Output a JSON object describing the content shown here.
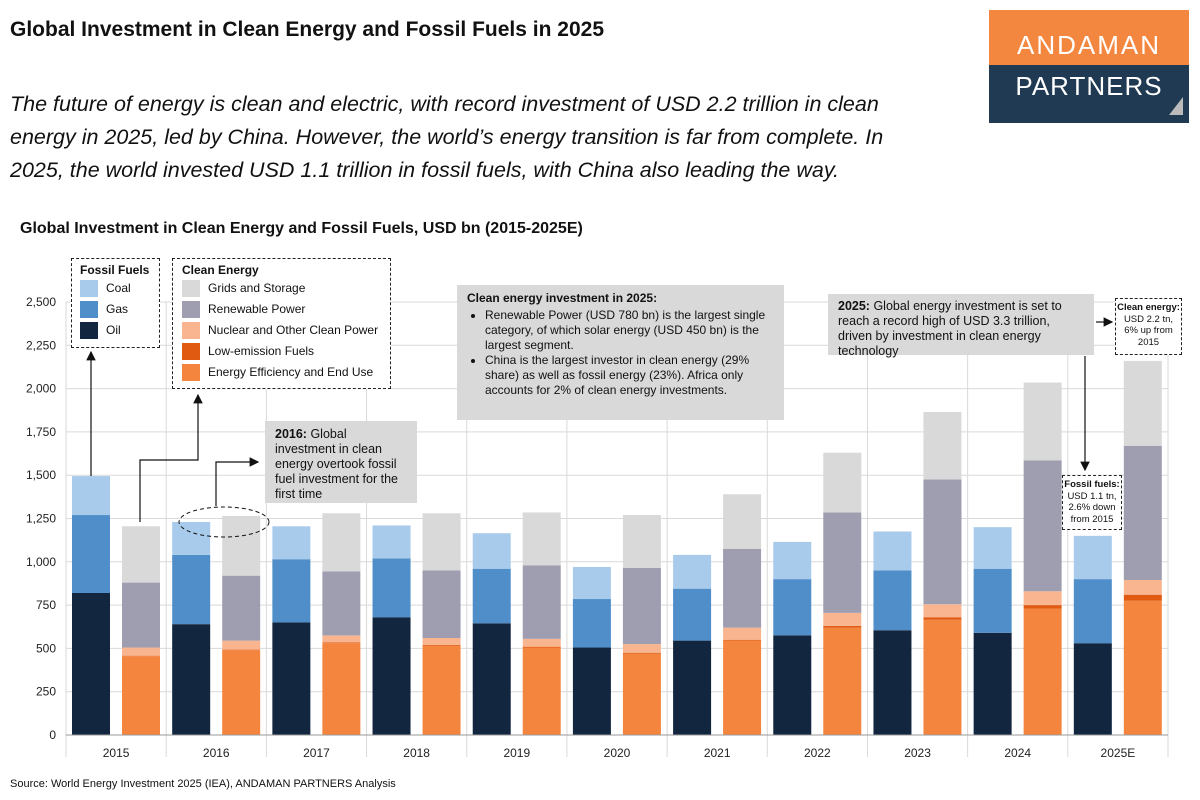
{
  "title": "Global Investment in Clean Energy and Fossil Fuels in 2025",
  "subtitle": "The future of energy is clean and electric, with record investment of USD 2.2 trillion in clean energy in 2025, led by China. However, the world’s energy transition is far from complete. In 2025, the world invested USD 1.1 trillion in fossil fuels, with China also leading the way.",
  "logo": {
    "line1": "ANDAMAN",
    "line2": "PARTNERS",
    "colors": [
      "#f4873f",
      "#1f3a52"
    ]
  },
  "source": "Source: World Energy Investment 2025 (IEA), ANDAMAN PARTNERS Analysis",
  "annotations": {
    "a2016_bold": "2016:",
    "a2016_text": " Global investment in clean energy overtook fossil fuel investment for the first time",
    "clean_title": "Clean energy investment in 2025:",
    "clean_b1": "Renewable Power (USD 780 bn) is the largest single category, of which solar energy (USD 450 bn) is the largest segment.",
    "clean_b2": "China is the largest investor in clean energy (29% share) as well as fossil energy (23%). Africa only accounts for 2% of clean energy investments.",
    "a2025_bold": "2025:",
    "a2025_text": " Global energy investment is set to reach a record high of USD 3.3 trillion, driven by investment in clean energy technology",
    "clean_callout_title": "Clean energy:",
    "clean_callout_text": "USD 2.2 tn, 6% up from 2015",
    "fossil_callout_title": "Fossil fuels:",
    "fossil_callout_text": "USD 1.1 tn, 2.6% down from 2015"
  },
  "chart_data": {
    "type": "bar",
    "stacked": true,
    "title": "Global Investment in Clean Energy and Fossil Fuels, USD bn (2015-2025E)",
    "xlabel": "",
    "ylabel": "",
    "ylim": [
      0,
      2500
    ],
    "yticks": [
      0,
      250,
      500,
      750,
      1000,
      1250,
      1500,
      1750,
      2000,
      2250,
      2500
    ],
    "ytick_labels": [
      "0",
      "250",
      "500",
      "750",
      "1,000",
      "1,250",
      "1,500",
      "1,750",
      "2,000",
      "2,250",
      "2,500"
    ],
    "grid": true,
    "categories": [
      "2015",
      "2016",
      "2017",
      "2018",
      "2019",
      "2020",
      "2021",
      "2022",
      "2023",
      "2024",
      "2025E"
    ],
    "groups": [
      {
        "name": "Fossil Fuels",
        "series": [
          {
            "name": "Oil",
            "color": "#12263f",
            "values": [
              820,
              640,
              650,
              680,
              645,
              505,
              545,
              575,
              605,
              590,
              530
            ]
          },
          {
            "name": "Gas",
            "color": "#4f8ec9",
            "values": [
              450,
              400,
              365,
              340,
              315,
              280,
              300,
              325,
              345,
              370,
              370
            ]
          },
          {
            "name": "Coal",
            "color": "#a9cbeb",
            "values": [
              225,
              190,
              190,
              190,
              205,
              185,
              195,
              215,
              225,
              240,
              250
            ]
          }
        ]
      },
      {
        "name": "Clean Energy",
        "series": [
          {
            "name": "Energy Efficiency and End Use",
            "color": "#f4853f",
            "values": [
              455,
              490,
              530,
              515,
              505,
              470,
              545,
              620,
              665,
              730,
              775
            ]
          },
          {
            "name": "Low-emission Fuels",
            "color": "#e05a12",
            "values": [
              3,
              3,
              5,
              5,
              5,
              5,
              5,
              10,
              15,
              20,
              35
            ]
          },
          {
            "name": "Nuclear and Other Clean Power",
            "color": "#f8b58f",
            "values": [
              47,
              52,
              40,
              40,
              45,
              50,
              70,
              75,
              75,
              80,
              85
            ]
          },
          {
            "name": "Renewable Power",
            "color": "#9e9eb0",
            "values": [
              375,
              375,
              370,
              390,
              425,
              440,
              455,
              580,
              720,
              755,
              775
            ]
          },
          {
            "name": "Grids and Storage",
            "color": "#d9d9d9",
            "values": [
              325,
              345,
              335,
              330,
              305,
              305,
              315,
              345,
              390,
              450,
              490
            ]
          }
        ]
      }
    ]
  }
}
